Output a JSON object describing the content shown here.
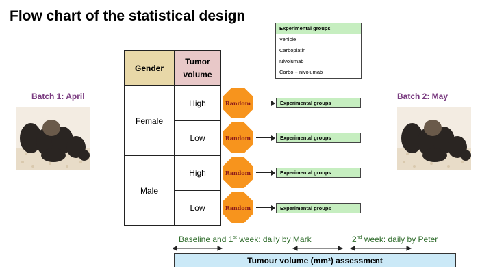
{
  "title": "Flow chart of the statistical design",
  "batches": {
    "left_label": "Batch 1: April",
    "right_label": "Batch 2: May"
  },
  "table": {
    "header_gender": "Gender",
    "header_tumor_line1": "Tumor",
    "header_tumor_line2": "volume",
    "female_label": "Female",
    "male_label": "Male",
    "rows": [
      {
        "level": "High"
      },
      {
        "level": "Low"
      },
      {
        "level": "High"
      },
      {
        "level": "Low"
      }
    ]
  },
  "random_label": "Random",
  "group_box_label": "Experimental groups",
  "legend": {
    "header": "Experimental groups",
    "items": [
      "Vehicle",
      "Carboplatin",
      "Nivolumab",
      "Carbo + nivolumab"
    ]
  },
  "timeline": {
    "left_text_a": "Baseline and 1",
    "left_text_sup": "st",
    "left_text_b": "  week: daily by Mark",
    "right_text_a": "2",
    "right_text_sup": "nd",
    "right_text_b": "  week: daily by Peter",
    "assessment_a": "Tumour volume (mm",
    "assessment_sup": "3",
    "assessment_b": ") assessment"
  },
  "colors": {
    "batch_text": "#7a3b80",
    "octagon": "#f7941d",
    "random_text": "#8b1a1a",
    "group_fill": "#c6eec0",
    "timeline_text": "#2e6b2a",
    "assessment_fill": "#cbe9f7"
  }
}
